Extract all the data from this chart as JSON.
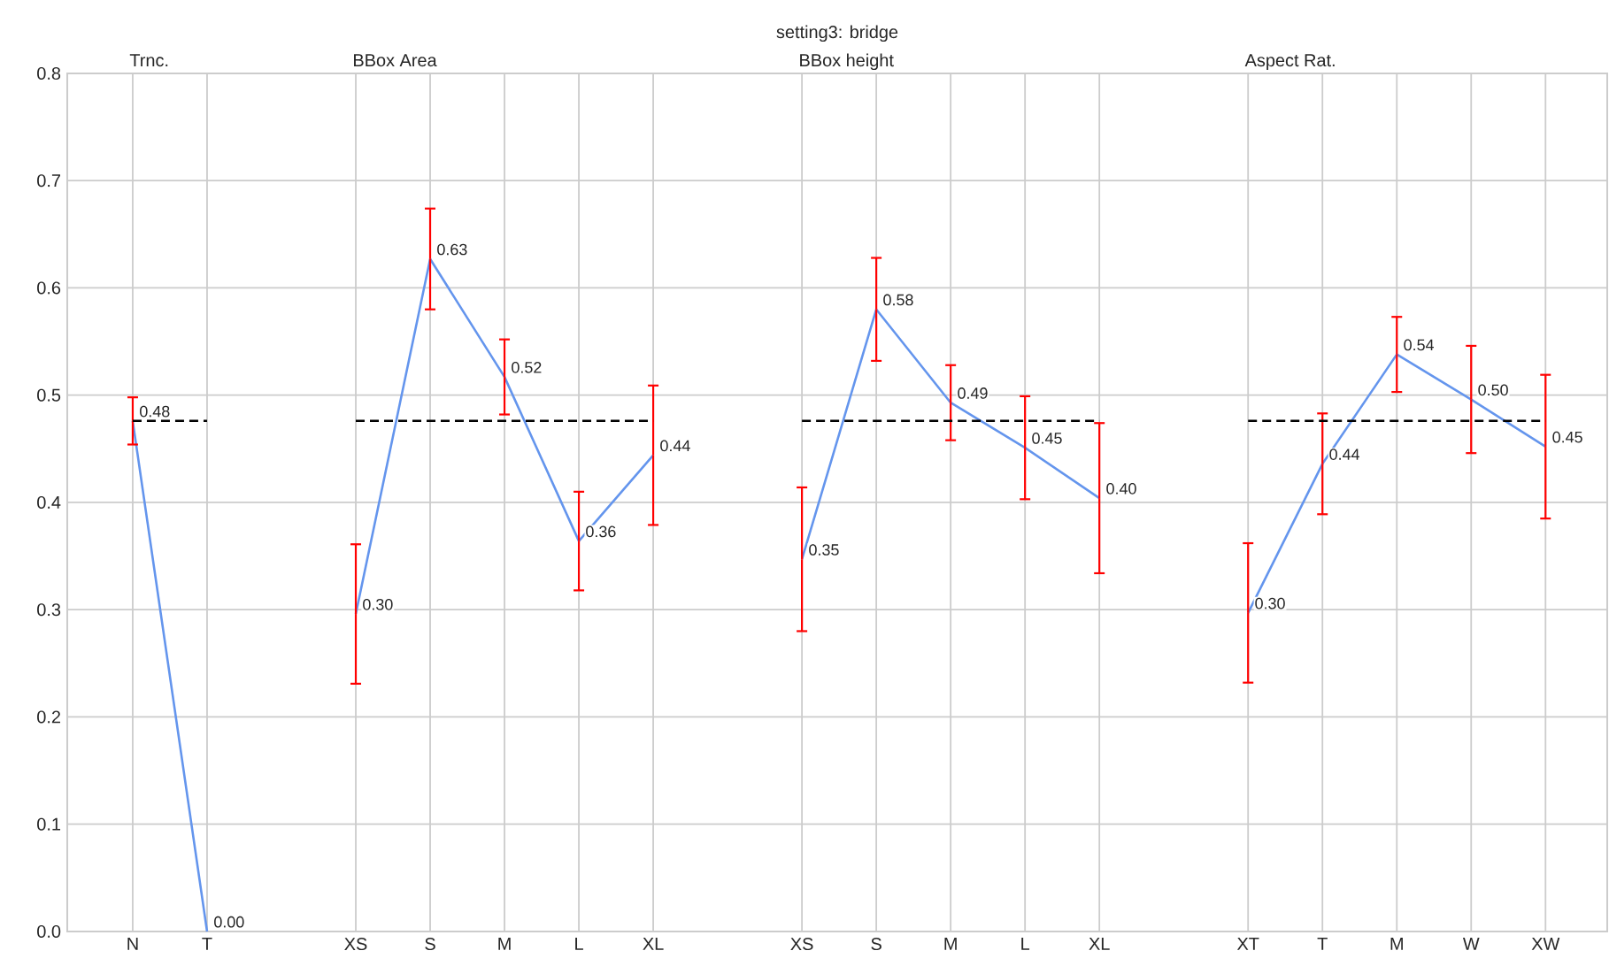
{
  "chart_data": {
    "type": "line",
    "title": "setting3: bridge",
    "categories": [
      "N",
      "T",
      null,
      "XS",
      "S",
      "M",
      "L",
      "XL",
      null,
      "XS",
      "S",
      "M",
      "L",
      "XL",
      null,
      "XT",
      "T",
      "M",
      "W",
      "XW"
    ],
    "series": [
      {
        "color": "#6495ed",
        "values": [
          0.476,
          0.0,
          null,
          0.296,
          0.627,
          0.517,
          0.364,
          0.444,
          null,
          0.347,
          0.58,
          0.493,
          0.451,
          0.404,
          null,
          0.297,
          0.436,
          0.538,
          0.496,
          0.452
        ],
        "errors": [
          0.022,
          null,
          null,
          0.065,
          0.047,
          0.035,
          0.046,
          0.065,
          null,
          0.067,
          0.048,
          0.035,
          0.048,
          0.07,
          null,
          0.065,
          0.047,
          0.035,
          0.05,
          0.067
        ],
        "value_labels": [
          "0.48",
          "0.00",
          null,
          "0.30",
          "0.63",
          "0.52",
          "0.36",
          "0.44",
          null,
          "0.35",
          "0.58",
          "0.49",
          "0.45",
          "0.40",
          null,
          "0.30",
          "0.44",
          "0.54",
          "0.50",
          "0.45"
        ]
      },
      {
        "type": "line",
        "color": "#000000",
        "line_style": "dashed",
        "values": [
          0.476,
          0.476,
          null,
          0.476,
          0.476,
          0.476,
          0.476,
          0.476,
          null,
          0.476,
          0.476,
          0.476,
          0.476,
          0.476,
          null,
          0.476,
          0.476,
          0.476,
          0.476,
          0.476
        ]
      }
    ],
    "annotations": [
      "Trnc.",
      "BBox Area",
      "BBox height",
      "Aspect Rat."
    ],
    "ylim": [
      0,
      0.8
    ],
    "yticks": [
      {
        "value": 0,
        "label": "0.0"
      },
      0.1,
      0.2,
      0.3,
      0.4,
      0.5,
      0.6,
      0.7,
      0.8
    ],
    "grid": true
  }
}
